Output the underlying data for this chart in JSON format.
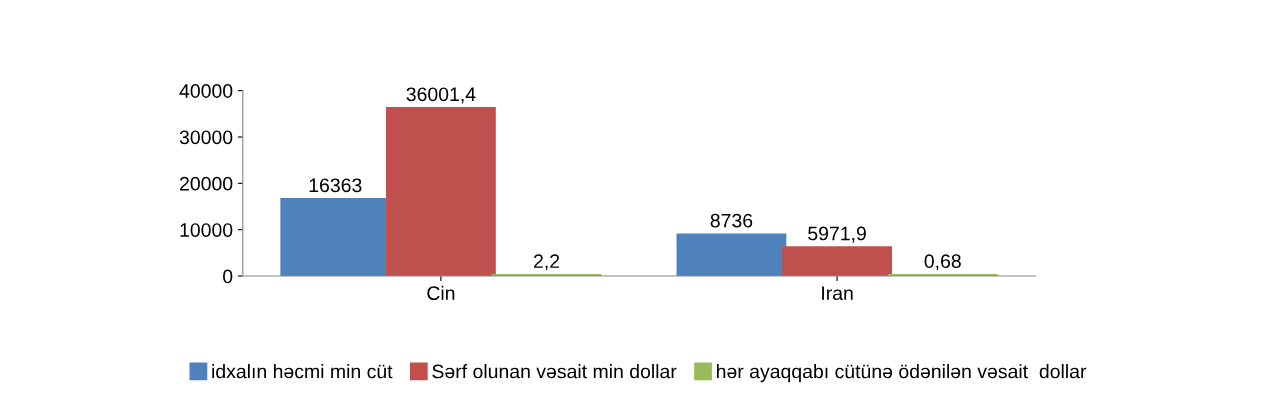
{
  "chart_data": {
    "type": "bar",
    "categories": [
      "Cin",
      "Iran"
    ],
    "series": [
      {
        "name": "idxalın həcmi min cüt",
        "color": "#4f81bd",
        "values": [
          16363,
          8736
        ],
        "value_labels": [
          "16363",
          "8736"
        ]
      },
      {
        "name": "Sərf olunan vəsait min dollar",
        "color": "#c0504d",
        "values": [
          36001.4,
          5971.9
        ],
        "value_labels": [
          "36001,4",
          "5971,9"
        ]
      },
      {
        "name": "hər ayaqqabı cütünə ödənilən vəsait  dollar",
        "color": "#9bbb59",
        "values": [
          2.2,
          0.68
        ],
        "value_labels": [
          "2,2",
          "0,68"
        ]
      }
    ],
    "ylim": [
      0,
      40000
    ],
    "yticks": [
      0,
      10000,
      20000,
      30000,
      40000
    ],
    "grid": false,
    "legend": "bottom"
  }
}
